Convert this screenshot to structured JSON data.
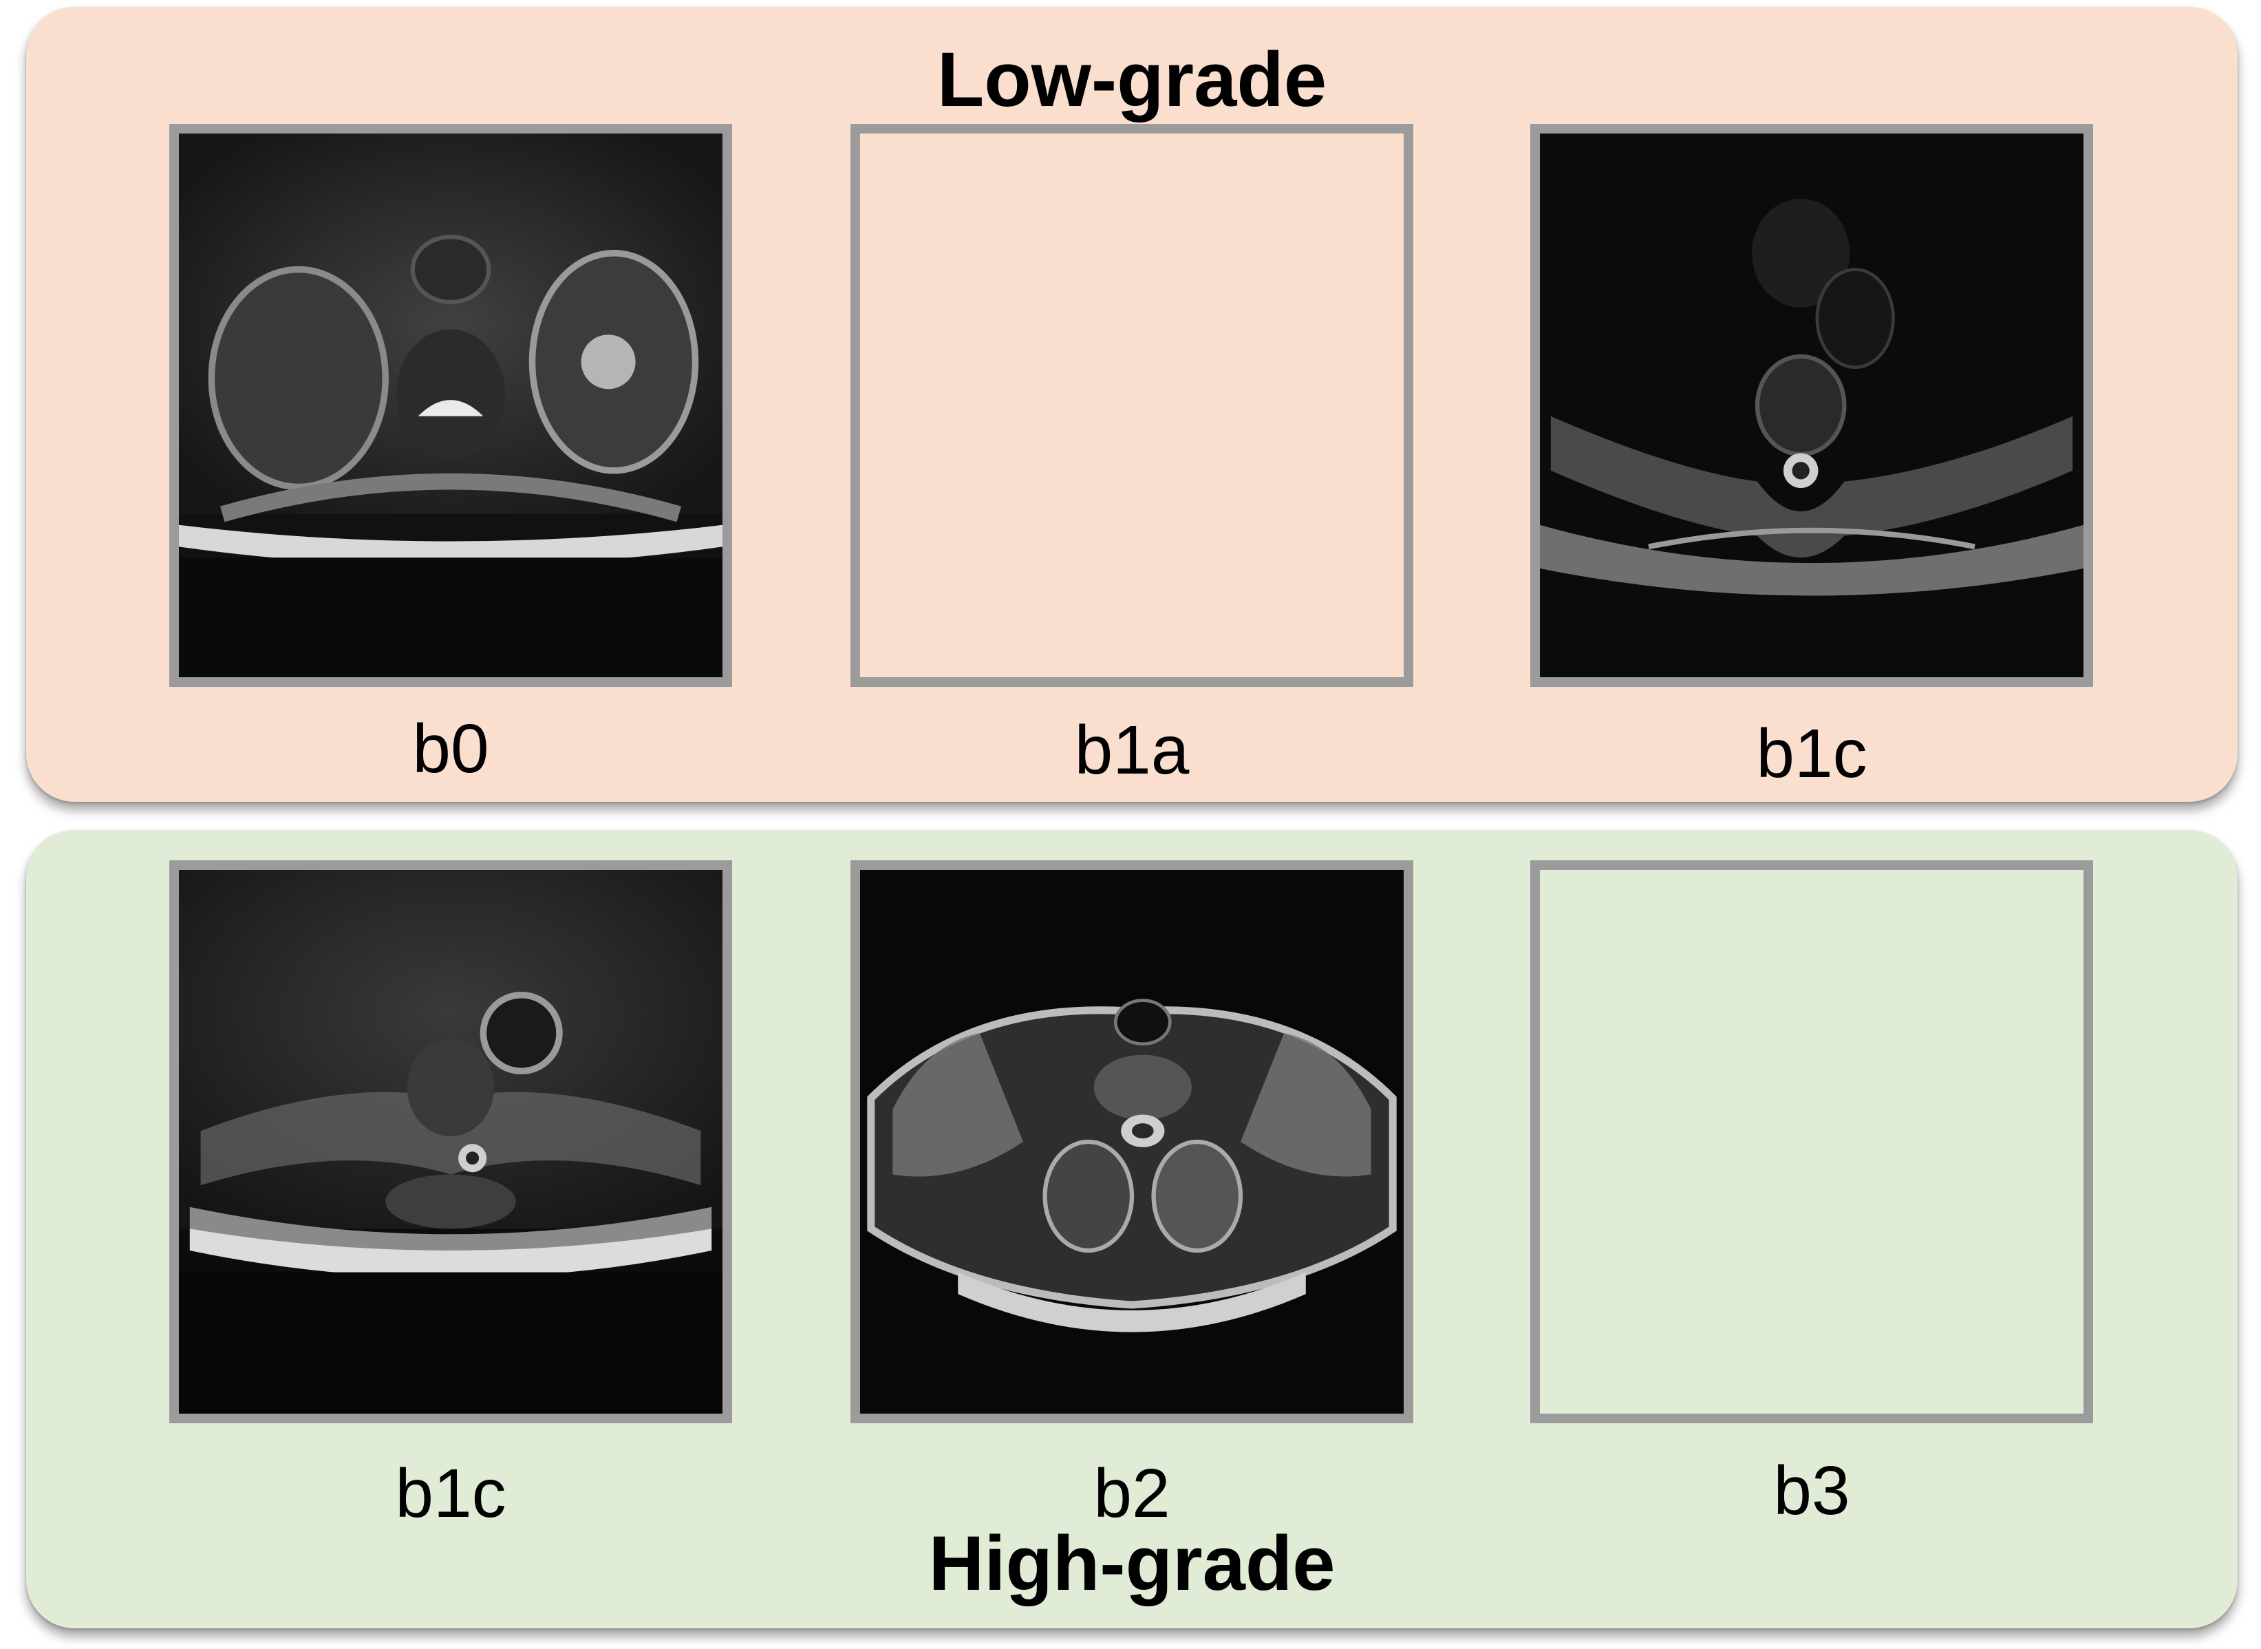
{
  "groups": {
    "low": {
      "title": "Low-grade",
      "panels": [
        {
          "label": "b0",
          "image": "mri-axial-spine-scan"
        },
        {
          "label": "b1a",
          "image": "empty"
        },
        {
          "label": "b1c",
          "image": "mri-axial-spine-scan"
        }
      ]
    },
    "high": {
      "title": "High-grade",
      "panels": [
        {
          "label": "b1c",
          "image": "mri-axial-spine-scan"
        },
        {
          "label": "b2",
          "image": "mri-axial-spine-scan"
        },
        {
          "label": "b3",
          "image": "empty"
        }
      ]
    }
  },
  "colors": {
    "low_panel_bg": "#fadfce",
    "high_panel_bg": "#e0ecd5",
    "image_border": "#9b9b9b"
  }
}
